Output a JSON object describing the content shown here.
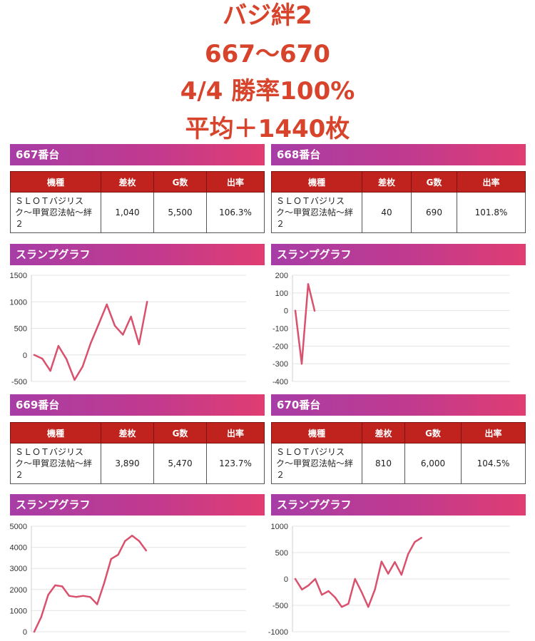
{
  "header": {
    "title": "バジ絆2",
    "range": "667〜670",
    "record": "4/4 勝率100%",
    "average": "平均＋1440枚"
  },
  "table_headers": [
    "機種",
    "差枚",
    "G数",
    "出率"
  ],
  "graph_title": "スランプグラフ",
  "colors": {
    "line": "#d9516d",
    "header_red": "#c0231e",
    "headline": "#d8432c"
  },
  "machines": [
    {
      "id": "667番台",
      "model": "ＳＬＯＴバジリスク〜甲賀忍法帖〜絆２",
      "diff": "1,040",
      "games": "5,500",
      "rate": "106.3%"
    },
    {
      "id": "668番台",
      "model": "ＳＬＯＴバジリスク〜甲賀忍法帖〜絆２",
      "diff": "40",
      "games": "690",
      "rate": "101.8%"
    },
    {
      "id": "669番台",
      "model": "ＳＬＯＴバジリスク〜甲賀忍法帖〜絆２",
      "diff": "3,890",
      "games": "5,470",
      "rate": "123.7%"
    },
    {
      "id": "670番台",
      "model": "ＳＬＯＴバジリスク〜甲賀忍法帖〜絆２",
      "diff": "810",
      "games": "6,000",
      "rate": "104.5%"
    }
  ],
  "chart_data": [
    {
      "type": "line",
      "title": "スランプグラフ",
      "yticks": [
        1500,
        1000,
        500,
        0,
        -500
      ],
      "ylim": [
        -500,
        1500
      ],
      "grid": true,
      "values": [
        0,
        -70,
        -300,
        170,
        -80,
        -470,
        -220,
        220,
        580,
        950,
        550,
        380,
        720,
        200,
        1000
      ]
    },
    {
      "type": "line",
      "title": "スランプグラフ",
      "yticks": [
        200,
        100,
        0,
        -100,
        -200,
        -300,
        -400
      ],
      "ylim": [
        -400,
        200
      ],
      "grid": true,
      "values": [
        0,
        -300,
        150,
        0
      ]
    },
    {
      "type": "line",
      "title": "スランプグラフ",
      "yticks": [
        5000,
        4000,
        3000,
        2000,
        1000,
        0
      ],
      "ylim": [
        0,
        5000
      ],
      "grid": true,
      "values": [
        0,
        700,
        1750,
        2200,
        2150,
        1700,
        1650,
        1700,
        1650,
        1300,
        2300,
        3450,
        3650,
        4300,
        4550,
        4300,
        3850
      ]
    },
    {
      "type": "line",
      "title": "スランプグラフ",
      "yticks": [
        1000,
        500,
        0,
        -500,
        -1000
      ],
      "ylim": [
        -1000,
        1000
      ],
      "grid": true,
      "values": [
        0,
        -200,
        -120,
        0,
        -300,
        -230,
        -350,
        -530,
        -470,
        0,
        -250,
        -530,
        -200,
        330,
        100,
        320,
        80,
        470,
        700,
        780
      ]
    }
  ]
}
